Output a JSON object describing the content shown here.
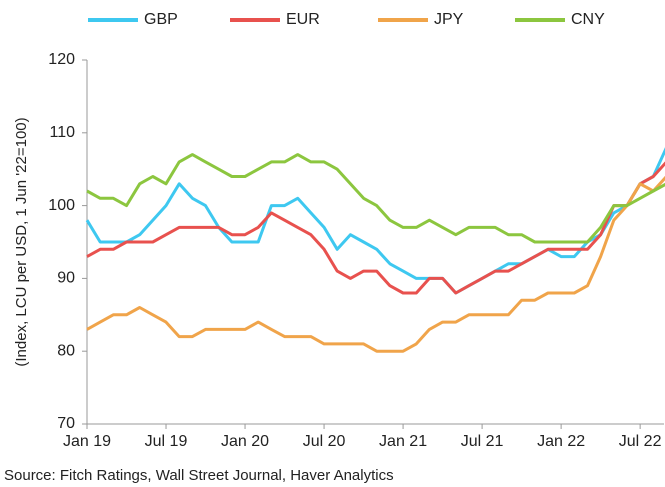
{
  "chart_data": {
    "type": "line",
    "y_label": "(Index, LCU per USD, 1 Jun '22=100)",
    "source": "Source: Fitch Ratings, Wall Street Journal, Haver Analytics",
    "categories": [
      "Jan 19",
      null,
      null,
      null,
      null,
      null,
      "Jul 19",
      null,
      null,
      null,
      null,
      null,
      "Jan 20",
      null,
      null,
      null,
      null,
      null,
      "Jul 20",
      null,
      null,
      null,
      null,
      null,
      "Jan 21",
      null,
      null,
      null,
      null,
      null,
      "Jul 21",
      null,
      null,
      null,
      null,
      null,
      "Jan 22",
      null,
      null,
      null,
      null,
      null,
      "Jul 22",
      null,
      null
    ],
    "series": [
      {
        "name": "GBP",
        "color": "#3ec8f0",
        "values": [
          98,
          95,
          95,
          95,
          96,
          98,
          100,
          103,
          101,
          100,
          97,
          95,
          95,
          95,
          100,
          100,
          101,
          99,
          97,
          94,
          96,
          95,
          94,
          92,
          91,
          90,
          90,
          90,
          88,
          89,
          90,
          91,
          92,
          92,
          93,
          94,
          93,
          93,
          95,
          96,
          99,
          100,
          103,
          104,
          108
        ]
      },
      {
        "name": "EUR",
        "color": "#e8514e",
        "values": [
          93,
          94,
          94,
          95,
          95,
          95,
          96,
          97,
          97,
          97,
          97,
          96,
          96,
          97,
          99,
          98,
          97,
          96,
          94,
          91,
          90,
          91,
          91,
          89,
          88,
          88,
          90,
          90,
          88,
          89,
          90,
          91,
          91,
          92,
          93,
          94,
          94,
          94,
          94,
          96,
          100,
          100,
          103,
          104,
          106
        ]
      },
      {
        "name": "JPY",
        "color": "#f0a44a",
        "values": [
          83,
          84,
          85,
          85,
          86,
          85,
          84,
          82,
          82,
          83,
          83,
          83,
          83,
          84,
          83,
          82,
          82,
          82,
          81,
          81,
          81,
          81,
          80,
          80,
          80,
          81,
          83,
          84,
          84,
          85,
          85,
          85,
          85,
          87,
          87,
          88,
          88,
          88,
          89,
          93,
          98,
          100,
          103,
          102,
          104
        ]
      },
      {
        "name": "CNY",
        "color": "#8cc63f",
        "values": [
          102,
          101,
          101,
          100,
          103,
          104,
          103,
          106,
          107,
          106,
          105,
          104,
          104,
          105,
          106,
          106,
          107,
          106,
          106,
          105,
          103,
          101,
          100,
          98,
          97,
          97,
          98,
          97,
          96,
          97,
          97,
          97,
          96,
          96,
          95,
          95,
          95,
          95,
          95,
          97,
          100,
          100,
          101,
          102,
          103
        ]
      }
    ],
    "ylim": [
      70,
      120
    ],
    "yticks": [
      70,
      80,
      90,
      100,
      110,
      120
    ],
    "grid": false
  }
}
